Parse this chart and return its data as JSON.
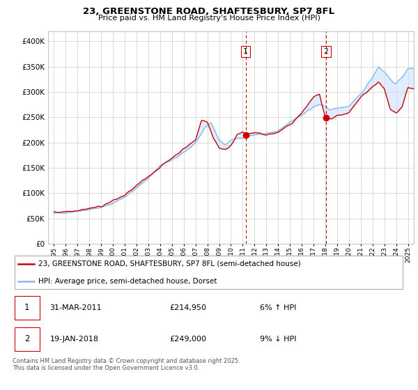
{
  "title": "23, GREENSTONE ROAD, SHAFTESBURY, SP7 8FL",
  "subtitle": "Price paid vs. HM Land Registry's House Price Index (HPI)",
  "legend_label_red": "23, GREENSTONE ROAD, SHAFTESBURY, SP7 8FL (semi-detached house)",
  "legend_label_blue": "HPI: Average price, semi-detached house, Dorset",
  "purchase1_date": "31-MAR-2011",
  "purchase1_price": "£214,950",
  "purchase1_note": "6% ↑ HPI",
  "purchase1_year": 2011.25,
  "purchase1_value": 214950,
  "purchase2_date": "19-JAN-2018",
  "purchase2_price": "£249,000",
  "purchase2_note": "9% ↓ HPI",
  "purchase2_year": 2018.05,
  "purchase2_value": 249000,
  "ylim_min": 0,
  "ylim_max": 420000,
  "xlim_min": 1994.5,
  "xlim_max": 2025.5,
  "red_color": "#cc0000",
  "blue_color": "#88bbee",
  "shade_color": "#cce0ff",
  "dashed_color": "#cc0000",
  "footnote": "Contains HM Land Registry data © Crown copyright and database right 2025.\nThis data is licensed under the Open Government Licence v3.0."
}
